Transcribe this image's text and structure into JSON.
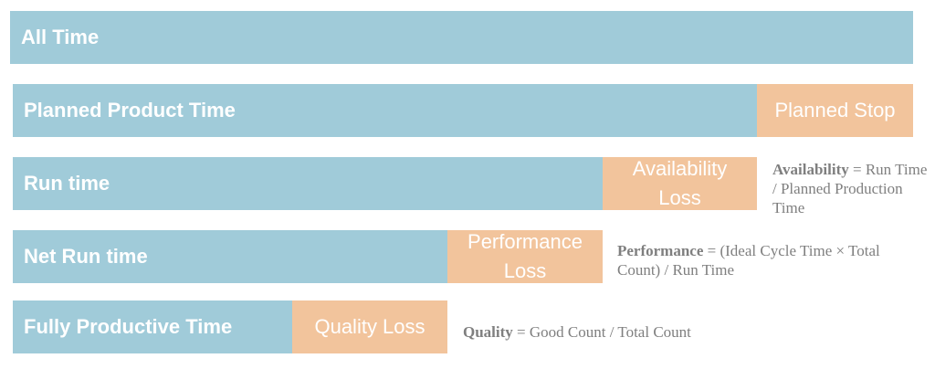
{
  "rows": [
    {
      "label": "All Time"
    },
    {
      "label": "Planned Product Time",
      "loss": "Planned Stop"
    },
    {
      "label": "Run time",
      "loss_line1": "Availability",
      "loss_line2": "Loss"
    },
    {
      "label": "Net Run time",
      "loss_line1": "Performance",
      "loss_line2": "Loss"
    },
    {
      "label": "Fully Productive Time",
      "loss": "Quality Loss"
    }
  ],
  "formulas": {
    "availability": {
      "term": "Availability",
      "rest": " = Run Time / Planned Production Time"
    },
    "performance": {
      "term": "Performance",
      "rest": " = (Ideal Cycle Time × Total Count) / Run Time"
    },
    "quality": {
      "term": "Quality",
      "rest": " = Good Count / Total Count"
    }
  },
  "colors": {
    "bar": "#a0cbd9",
    "loss": "#f2c49c",
    "formula_text": "#7f7f7f"
  }
}
